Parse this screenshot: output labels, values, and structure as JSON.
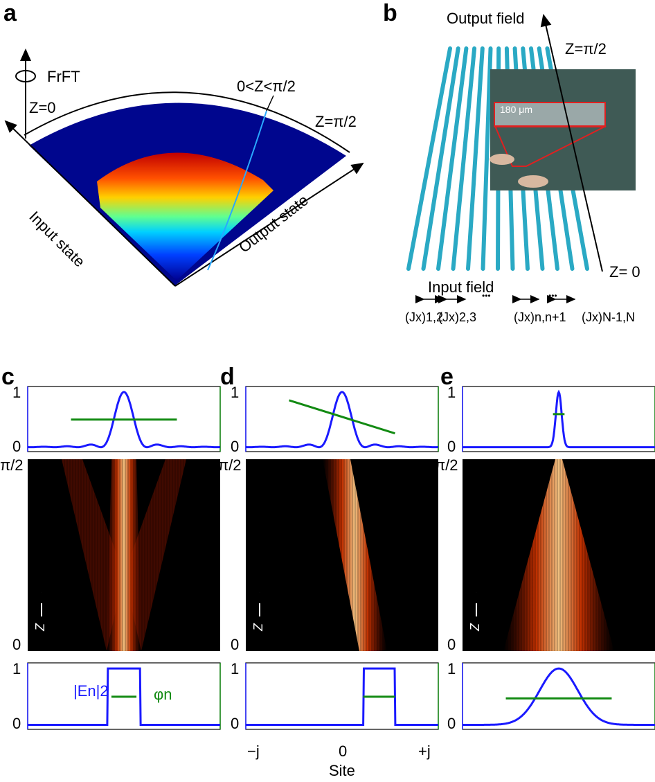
{
  "panel_labels": {
    "a": "a",
    "b": "b",
    "c": "c",
    "d": "d",
    "e": "e"
  },
  "panel_a": {
    "rotation_label": "FrFT",
    "z0": "Z=0",
    "z_mid": "0<Z<π/2",
    "z_end": "Z=π/2",
    "input_axis": "Input state",
    "output_axis": "Output state"
  },
  "panel_b": {
    "output_field": "Output field",
    "z_end": "Z=π/2",
    "z0": "Z= 0",
    "input_field": "Input field",
    "inset_scale": "180 μm",
    "couplings": [
      "(Jx)1,2",
      "(Jx)2,3",
      "(Jx)n,n+1",
      "(Jx)N-1,N"
    ],
    "ellipsis": "•••",
    "waveguide_color": "#2aa9c4"
  },
  "axes": {
    "y_ticks_profile": [
      "1",
      "0"
    ],
    "y_ticks_z": [
      "π/2",
      "0"
    ],
    "z_arrow_label": "Z",
    "x_ticks": [
      "−j",
      "0",
      "+j"
    ],
    "xlabel": "Site",
    "intensity_label": "|En|2",
    "phase_label": "φn"
  },
  "colors": {
    "intensity": "#1a1aff",
    "phase": "#128a12"
  },
  "chart_data": [
    {
      "panel": "c",
      "type": "line",
      "row": "output",
      "x_range": [
        -1,
        1
      ],
      "ylim": [
        0,
        1
      ],
      "intensity": {
        "shape": "sinc2",
        "center": 0,
        "width": 0.12,
        "peak": 1
      },
      "phase": {
        "x": [
          -0.55,
          0.55
        ],
        "y": [
          0.5,
          0.5
        ]
      }
    },
    {
      "panel": "c",
      "type": "heatmap",
      "row": "propagation",
      "z_range": [
        "0",
        "π/2"
      ],
      "pattern": "flat-top input, spreading then focusing to central band"
    },
    {
      "panel": "c",
      "type": "line",
      "row": "input",
      "x_range": [
        -1,
        1
      ],
      "ylim": [
        0,
        1
      ],
      "intensity": {
        "shape": "rect",
        "x0": -0.17,
        "x1": 0.17,
        "peak": 1
      },
      "phase": {
        "x": [
          -0.13,
          0.13
        ],
        "y": [
          0.5,
          0.5
        ]
      }
    },
    {
      "panel": "d",
      "type": "line",
      "row": "output",
      "x_range": [
        -1,
        1
      ],
      "ylim": [
        0,
        1
      ],
      "intensity": {
        "shape": "sinc2",
        "center": 0,
        "width": 0.12,
        "peak": 1
      },
      "phase": {
        "x": [
          -0.55,
          0.55
        ],
        "y": [
          0.85,
          0.25
        ]
      }
    },
    {
      "panel": "d",
      "type": "heatmap",
      "row": "propagation",
      "z_range": [
        "0",
        "π/2"
      ],
      "pattern": "shifted input, beam bends toward center"
    },
    {
      "panel": "d",
      "type": "line",
      "row": "input",
      "x_range": [
        -1,
        1
      ],
      "ylim": [
        0,
        1
      ],
      "intensity": {
        "shape": "rect",
        "x0": 0.22,
        "x1": 0.55,
        "peak": 1
      },
      "phase": {
        "x": [
          0.22,
          0.55
        ],
        "y": [
          0.5,
          0.5
        ]
      }
    },
    {
      "panel": "e",
      "type": "line",
      "row": "output",
      "x_range": [
        -1,
        1
      ],
      "ylim": [
        0,
        1
      ],
      "intensity": {
        "shape": "gauss",
        "center": 0,
        "width": 0.03,
        "peak": 1
      },
      "phase": {
        "x": [
          -0.06,
          0.06
        ],
        "y": [
          0.6,
          0.6
        ]
      }
    },
    {
      "panel": "e",
      "type": "heatmap",
      "row": "propagation",
      "z_range": [
        "0",
        "π/2"
      ],
      "pattern": "wide gaussian narrowing to focus"
    },
    {
      "panel": "e",
      "type": "line",
      "row": "input",
      "x_range": [
        -1,
        1
      ],
      "ylim": [
        0,
        1
      ],
      "intensity": {
        "shape": "gauss",
        "center": 0,
        "width": 0.2,
        "peak": 1
      },
      "phase": {
        "x": [
          -0.55,
          0.55
        ],
        "y": [
          0.47,
          0.47
        ]
      }
    }
  ]
}
